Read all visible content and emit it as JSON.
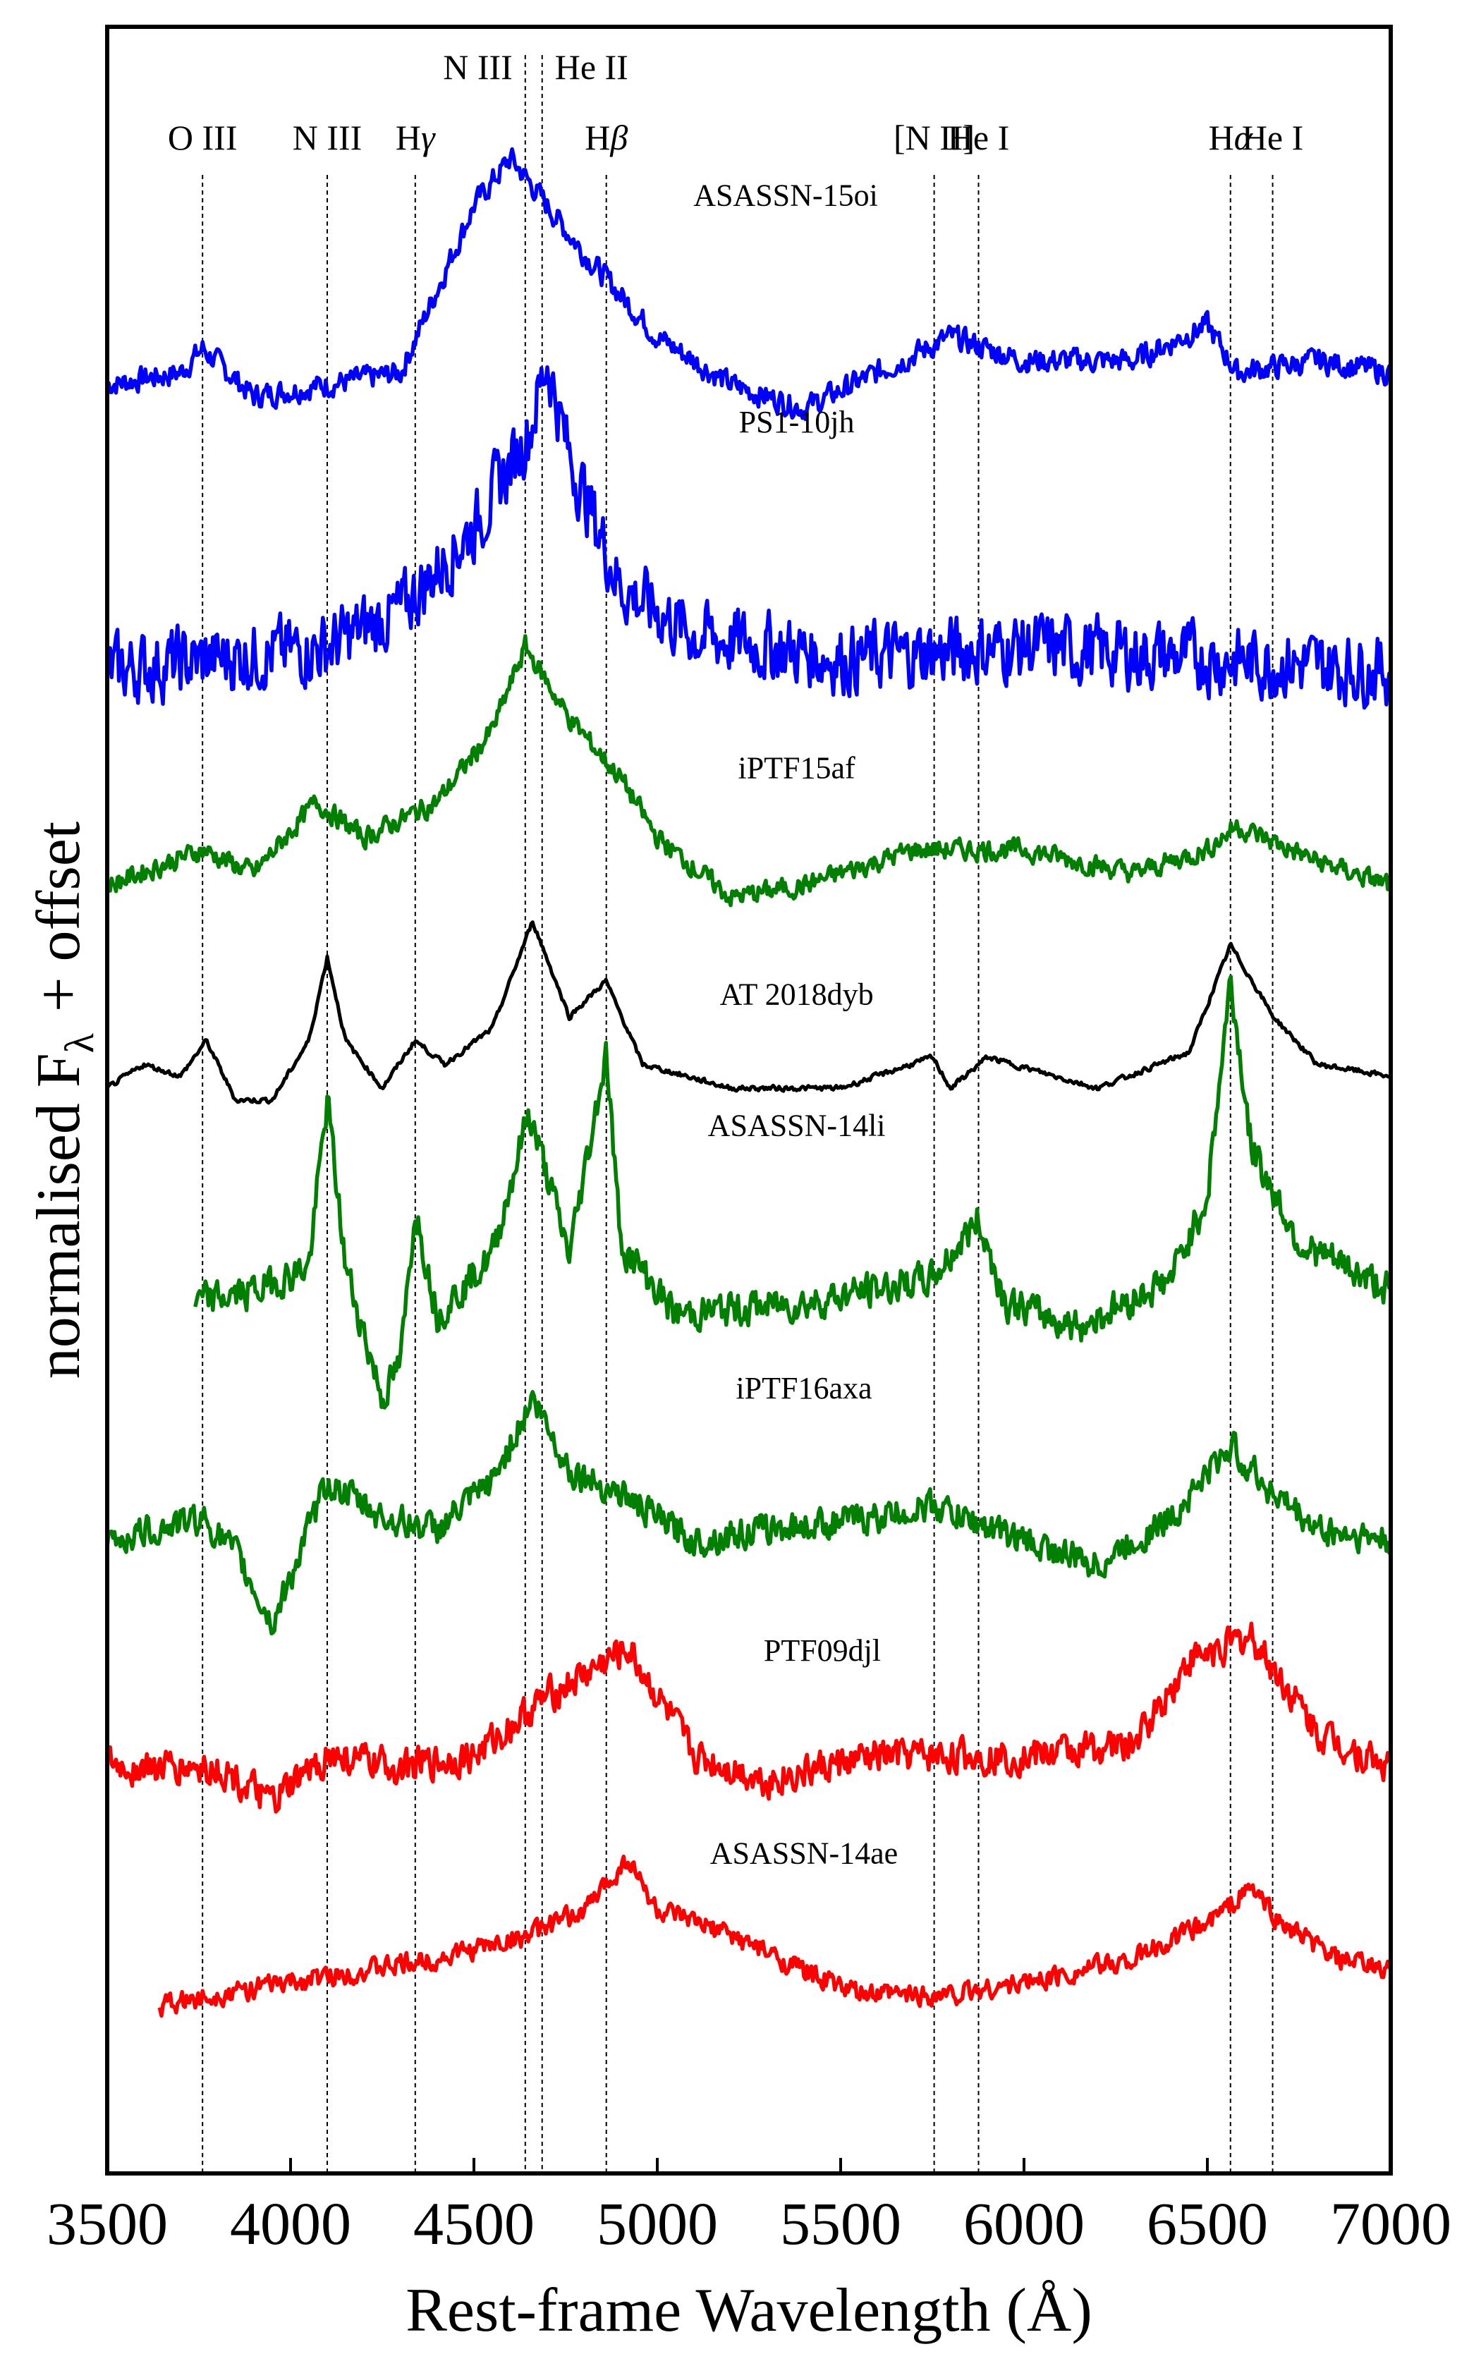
{
  "chart_data": {
    "type": "line",
    "xlabel": "Rest-frame Wavelength (Å)",
    "ylabel_parts": [
      "normalised F",
      "λ",
      "+ offset"
    ],
    "xlim": [
      3500,
      7000
    ],
    "x_ticks": [
      3500,
      4000,
      4500,
      5000,
      5500,
      6000,
      6500,
      7000
    ],
    "y_ticks_shown": false,
    "grid": false,
    "legend": "none",
    "line_markers": [
      {
        "label": "O III",
        "label_main": "O III",
        "label_italic": "",
        "wavelength": 3760,
        "row": 2
      },
      {
        "label": "N III",
        "label_main": "N III",
        "label_italic": "",
        "wavelength": 4100,
        "row": 2
      },
      {
        "label": "Hγ",
        "label_main": "H",
        "label_italic": "γ",
        "wavelength": 4340,
        "row": 2
      },
      {
        "label": "N III",
        "label_main": "N III",
        "label_italic": "",
        "wavelength": 4640,
        "row": 1
      },
      {
        "label": "He II",
        "label_main": "He II",
        "label_italic": "",
        "wavelength": 4686,
        "row": 1
      },
      {
        "label": "Hβ",
        "label_main": "H",
        "label_italic": "β",
        "wavelength": 4861,
        "row": 2
      },
      {
        "label": "[N II]",
        "label_main": "[N II]",
        "label_italic": "",
        "wavelength": 5755,
        "row": 2
      },
      {
        "label": "He I",
        "label_main": "He I",
        "label_italic": "",
        "wavelength": 5876,
        "row": 2
      },
      {
        "label": "Hα",
        "label_main": "H",
        "label_italic": "α",
        "wavelength": 6563,
        "row": 2
      },
      {
        "label": "He I",
        "label_main": "He I",
        "label_italic": "",
        "wavelength": 6678,
        "row": 2
      }
    ],
    "series": [
      {
        "name": "ASASSN-15oi",
        "color": "#0000ff",
        "x_start": 3500,
        "x_end": 7000,
        "offset": 8.0,
        "label_x": 5350,
        "label_y": 8.55,
        "points": [
          [
            3500,
            7.8
          ],
          [
            3700,
            7.85
          ],
          [
            3760,
            7.95
          ],
          [
            3900,
            7.75
          ],
          [
            4100,
            7.8
          ],
          [
            4300,
            7.85
          ],
          [
            4400,
            8.2
          ],
          [
            4500,
            8.55
          ],
          [
            4600,
            8.75
          ],
          [
            4700,
            8.55
          ],
          [
            4800,
            8.35
          ],
          [
            5000,
            8.0
          ],
          [
            5200,
            7.8
          ],
          [
            5400,
            7.7
          ],
          [
            5600,
            7.85
          ],
          [
            5800,
            8.0
          ],
          [
            6000,
            7.9
          ],
          [
            6300,
            7.9
          ],
          [
            6500,
            8.05
          ],
          [
            6580,
            7.85
          ],
          [
            6800,
            7.9
          ],
          [
            7000,
            7.85
          ]
        ],
        "noise": 0.07
      },
      {
        "name": "PS1-10jh",
        "color": "#0000ff",
        "x_start": 3500,
        "x_end": 7000,
        "offset": 6.8,
        "label_x": 5380,
        "label_y": 7.6,
        "points": [
          [
            3500,
            6.6
          ],
          [
            3800,
            6.65
          ],
          [
            4100,
            6.7
          ],
          [
            4300,
            6.85
          ],
          [
            4500,
            7.2
          ],
          [
            4650,
            7.6
          ],
          [
            4700,
            7.9
          ],
          [
            4760,
            7.5
          ],
          [
            4900,
            6.95
          ],
          [
            5100,
            6.75
          ],
          [
            5500,
            6.65
          ],
          [
            6000,
            6.7
          ],
          [
            6500,
            6.65
          ],
          [
            7000,
            6.6
          ]
        ],
        "noise": 0.2
      },
      {
        "name": "iPTF15af",
        "color": "#007f00",
        "x_start": 3500,
        "x_end": 7000,
        "offset": 5.7,
        "label_x": 5380,
        "label_y": 6.15,
        "points": [
          [
            3500,
            5.7
          ],
          [
            3760,
            5.85
          ],
          [
            3900,
            5.75
          ],
          [
            4070,
            6.05
          ],
          [
            4200,
            5.9
          ],
          [
            4400,
            6.05
          ],
          [
            4550,
            6.35
          ],
          [
            4640,
            6.7
          ],
          [
            4760,
            6.4
          ],
          [
            4900,
            6.15
          ],
          [
            5000,
            5.9
          ],
          [
            5200,
            5.65
          ],
          [
            5400,
            5.7
          ],
          [
            5700,
            5.85
          ],
          [
            6000,
            5.85
          ],
          [
            6300,
            5.75
          ],
          [
            6500,
            5.85
          ],
          [
            6580,
            5.95
          ],
          [
            6800,
            5.8
          ],
          [
            7000,
            5.7
          ]
        ],
        "noise": 0.06
      },
      {
        "name": "AT 2018dyb",
        "color": "#000000",
        "x_start": 3500,
        "x_end": 7000,
        "offset": 4.9,
        "label_x": 5380,
        "label_y": 5.2,
        "points": [
          [
            3500,
            4.85
          ],
          [
            3600,
            4.95
          ],
          [
            3700,
            4.9
          ],
          [
            3770,
            5.05
          ],
          [
            3850,
            4.8
          ],
          [
            3950,
            4.8
          ],
          [
            4050,
            5.05
          ],
          [
            4100,
            5.4
          ],
          [
            4150,
            5.05
          ],
          [
            4250,
            4.85
          ],
          [
            4340,
            5.05
          ],
          [
            4420,
            4.95
          ],
          [
            4550,
            5.1
          ],
          [
            4660,
            5.55
          ],
          [
            4760,
            5.15
          ],
          [
            4860,
            5.3
          ],
          [
            4960,
            4.95
          ],
          [
            5200,
            4.85
          ],
          [
            5500,
            4.85
          ],
          [
            5750,
            4.98
          ],
          [
            5800,
            4.85
          ],
          [
            5900,
            4.98
          ],
          [
            6200,
            4.85
          ],
          [
            6450,
            5.0
          ],
          [
            6563,
            5.45
          ],
          [
            6680,
            5.15
          ],
          [
            6800,
            4.95
          ],
          [
            7000,
            4.9
          ]
        ],
        "noise": 0.015
      },
      {
        "name": "ASASSN-14li",
        "color": "#007f00",
        "x_start": 3740,
        "x_end": 7000,
        "offset": 4.0,
        "label_x": 5380,
        "label_y": 4.65,
        "points": [
          [
            3740,
            3.95
          ],
          [
            3900,
            4.0
          ],
          [
            4050,
            4.1
          ],
          [
            4100,
            4.8
          ],
          [
            4150,
            4.1
          ],
          [
            4250,
            3.55
          ],
          [
            4300,
            3.7
          ],
          [
            4340,
            4.35
          ],
          [
            4400,
            3.9
          ],
          [
            4550,
            4.15
          ],
          [
            4650,
            4.75
          ],
          [
            4760,
            4.15
          ],
          [
            4861,
            5.0
          ],
          [
            4900,
            4.2
          ],
          [
            5050,
            3.9
          ],
          [
            5400,
            3.95
          ],
          [
            5750,
            4.05
          ],
          [
            5876,
            4.3
          ],
          [
            5950,
            3.95
          ],
          [
            6150,
            3.85
          ],
          [
            6400,
            4.05
          ],
          [
            6500,
            4.4
          ],
          [
            6563,
            5.3
          ],
          [
            6620,
            4.6
          ],
          [
            6750,
            4.2
          ],
          [
            7000,
            4.0
          ]
        ],
        "noise": 0.1
      },
      {
        "name": "iPTF16axa",
        "color": "#007f00",
        "x_start": 3500,
        "x_end": 7000,
        "offset": 2.95,
        "label_x": 5400,
        "label_y": 3.55,
        "points": [
          [
            3500,
            2.95
          ],
          [
            3760,
            3.05
          ],
          [
            3850,
            2.9
          ],
          [
            3950,
            2.6
          ],
          [
            4000,
            2.8
          ],
          [
            4100,
            3.2
          ],
          [
            4250,
            3.05
          ],
          [
            4400,
            3.0
          ],
          [
            4550,
            3.2
          ],
          [
            4660,
            3.55
          ],
          [
            4760,
            3.25
          ],
          [
            4900,
            3.15
          ],
          [
            5100,
            2.95
          ],
          [
            5300,
            3.0
          ],
          [
            5600,
            3.05
          ],
          [
            5750,
            3.1
          ],
          [
            6000,
            2.95
          ],
          [
            6200,
            2.85
          ],
          [
            6400,
            3.05
          ],
          [
            6563,
            3.35
          ],
          [
            6680,
            3.15
          ],
          [
            6800,
            3.0
          ],
          [
            7000,
            2.95
          ]
        ],
        "noise": 0.09
      },
      {
        "name": "PTF09djl",
        "color": "#ff0000",
        "x_start": 3500,
        "x_end": 7000,
        "offset": 1.95,
        "label_x": 5450,
        "label_y": 2.45,
        "points": [
          [
            3500,
            2.0
          ],
          [
            3800,
            2.0
          ],
          [
            3950,
            1.85
          ],
          [
            4100,
            2.05
          ],
          [
            4300,
            2.0
          ],
          [
            4500,
            2.05
          ],
          [
            4700,
            2.3
          ],
          [
            4920,
            2.5
          ],
          [
            5100,
            2.05
          ],
          [
            5300,
            1.95
          ],
          [
            5600,
            2.05
          ],
          [
            6000,
            2.05
          ],
          [
            6300,
            2.1
          ],
          [
            6450,
            2.45
          ],
          [
            6620,
            2.55
          ],
          [
            6800,
            2.15
          ],
          [
            7000,
            2.0
          ]
        ],
        "noise": 0.1
      },
      {
        "name": "ASASSN-14ae",
        "color": "#ff0000",
        "x_start": 3640,
        "x_end": 7000,
        "offset": 1.0,
        "label_x": 5400,
        "label_y": 1.6,
        "points": [
          [
            3640,
            1.0
          ],
          [
            3800,
            1.05
          ],
          [
            4000,
            1.1
          ],
          [
            4200,
            1.15
          ],
          [
            4400,
            1.2
          ],
          [
            4650,
            1.3
          ],
          [
            4800,
            1.4
          ],
          [
            4920,
            1.62
          ],
          [
            5000,
            1.4
          ],
          [
            5200,
            1.3
          ],
          [
            5400,
            1.15
          ],
          [
            5550,
            1.05
          ],
          [
            5800,
            1.05
          ],
          [
            6000,
            1.1
          ],
          [
            6300,
            1.2
          ],
          [
            6500,
            1.35
          ],
          [
            6620,
            1.5
          ],
          [
            6700,
            1.35
          ],
          [
            6850,
            1.2
          ],
          [
            7000,
            1.15
          ]
        ],
        "noise": 0.06
      }
    ],
    "ylim": [
      0.3,
      9.3
    ]
  }
}
